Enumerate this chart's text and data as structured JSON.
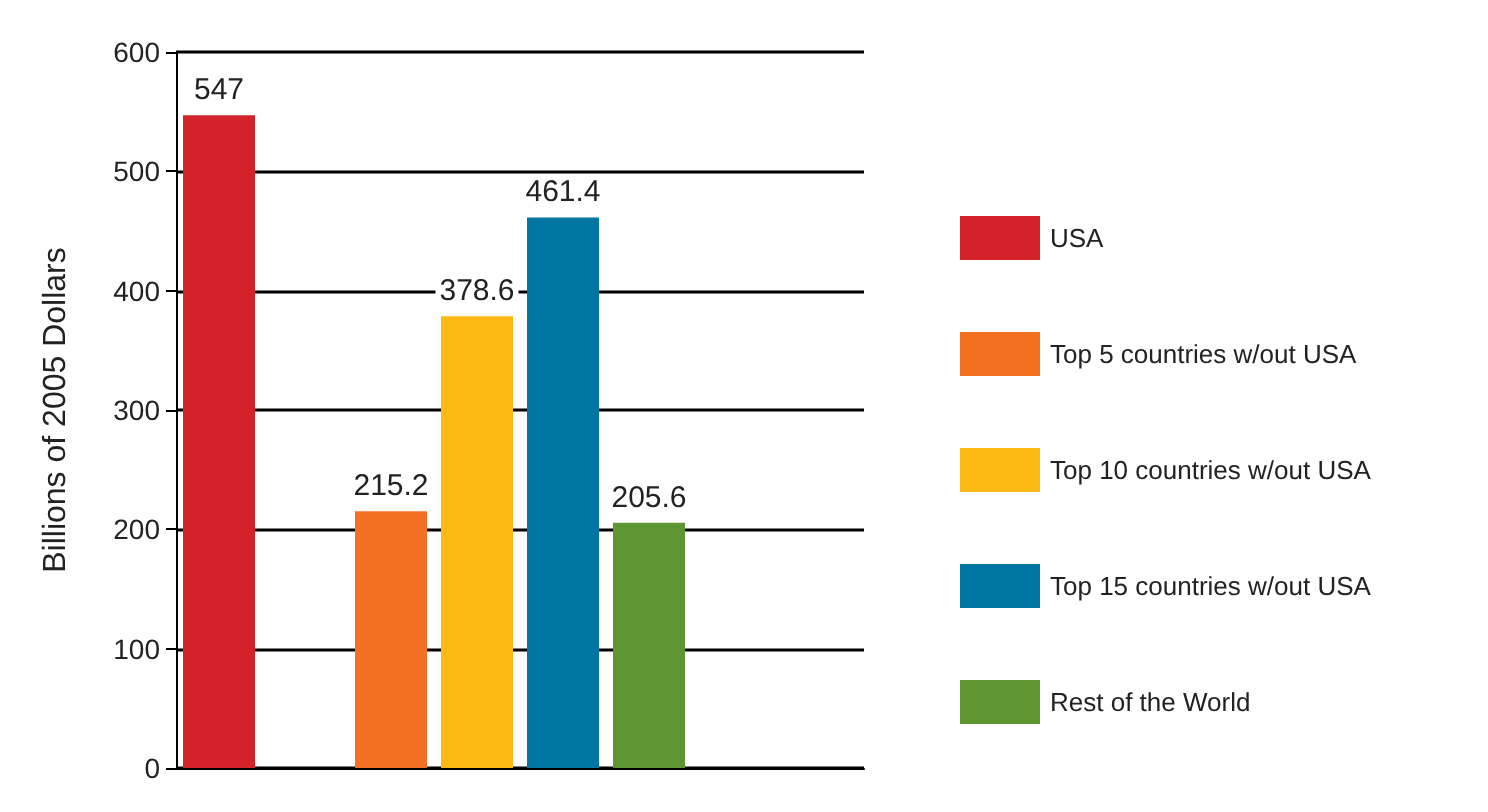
{
  "chart_data": {
    "type": "bar",
    "ylabel": "Billions of 2005 Dollars",
    "categories": [
      null,
      null,
      null,
      null,
      null,
      null,
      null,
      null
    ],
    "series": [
      {
        "name": "USA",
        "color": "#d2232a",
        "values": [
          547,
          null,
          null,
          null,
          null,
          null,
          null,
          null
        ]
      },
      {
        "name": "Top 5 countries w/out USA",
        "color": "#f36f21",
        "values": [
          null,
          null,
          215.2,
          null,
          null,
          null,
          null,
          null
        ]
      },
      {
        "name": "Top 10 countries w/out USA",
        "color": "#fdb913",
        "values": [
          null,
          null,
          null,
          378.6,
          null,
          null,
          null,
          null
        ]
      },
      {
        "name": "Top 15 countries w/out USA",
        "color": "#0076a3",
        "values": [
          null,
          null,
          null,
          null,
          461.4,
          null,
          null,
          null
        ]
      },
      {
        "name": "Rest of the World",
        "color": "#5e9732",
        "values": [
          null,
          null,
          null,
          null,
          null,
          205.6,
          null,
          null
        ]
      }
    ],
    "data_labels": true,
    "ylim": [
      0,
      600
    ],
    "yticks": [
      0,
      100,
      200,
      300,
      400,
      500,
      600
    ],
    "grid": "y",
    "legend": "right",
    "tick_labels": "y"
  }
}
